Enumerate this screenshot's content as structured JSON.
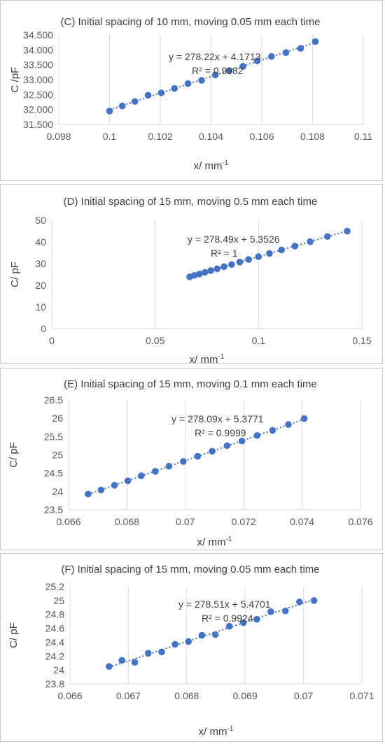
{
  "chart_data": [
    {
      "type": "scatter",
      "title": "(C) Initial spacing of 10 mm, moving 0.05 mm each time",
      "xlabel": "x/ mm",
      "xlabel_sup": "-1",
      "ylabel": "C /pF",
      "xlim": [
        0.098,
        0.11
      ],
      "ylim": [
        31.5,
        34.5
      ],
      "xticks": [
        "0.098",
        "0.1",
        "0.102",
        "0.104",
        "0.106",
        "0.108",
        "0.11"
      ],
      "yticks": [
        "31.500",
        "32.000",
        "32.500",
        "33.000",
        "33.500",
        "34.000",
        "34.500"
      ],
      "grid": "vertical",
      "equation": "y = 278.22x + 4.1713",
      "r2": "R² = 0.9982",
      "marker_color": "#4472c4",
      "trendline": {
        "slope": 278.22,
        "intercept": 4.1713
      },
      "series": [
        {
          "x": [
            0.1,
            0.1005,
            0.101,
            0.10152,
            0.10204,
            0.10256,
            0.10309,
            0.10363,
            0.10417,
            0.10471,
            0.10526,
            0.10582,
            0.10638,
            0.10695,
            0.10753,
            0.10811
          ],
          "y": [
            31.95,
            32.12,
            32.27,
            32.48,
            32.56,
            32.71,
            32.87,
            32.98,
            33.16,
            33.3,
            33.45,
            33.63,
            33.78,
            33.91,
            34.05,
            34.28
          ]
        }
      ]
    },
    {
      "type": "scatter",
      "title": "(D) Initial spacing of 15 mm, moving 0.5 mm each time",
      "xlabel": "x/ mm",
      "xlabel_sup": "-1",
      "ylabel": "C/ pF",
      "xlim": [
        0,
        0.15
      ],
      "ylim": [
        0,
        50
      ],
      "xticks": [
        "0",
        "0.05",
        "0.1",
        "0.15"
      ],
      "yticks": [
        "0",
        "10",
        "20",
        "30",
        "40",
        "50"
      ],
      "grid": "vertical",
      "equation": "y = 278.49x + 5.3526",
      "r2": "R² = 1",
      "marker_color": "#4472c4",
      "trendline": {
        "slope": 278.49,
        "intercept": 5.3526
      },
      "series": [
        {
          "x": [
            0.0667,
            0.069,
            0.0714,
            0.0741,
            0.0769,
            0.08,
            0.0833,
            0.087,
            0.0909,
            0.0952,
            0.1,
            0.1053,
            0.1111,
            0.1176,
            0.125,
            0.1333,
            0.1429
          ],
          "y": [
            23.9,
            24.6,
            25.2,
            26.0,
            26.8,
            27.6,
            28.6,
            29.6,
            30.7,
            31.9,
            33.2,
            34.7,
            36.3,
            38.1,
            40.1,
            42.5,
            45.0
          ]
        }
      ]
    },
    {
      "type": "scatter",
      "title": "(E) Initial spacing of 15 mm, moving 0.1 mm each time",
      "xlabel": "x/ mm",
      "xlabel_sup": "-1",
      "ylabel": "C/ pF",
      "xlim": [
        0.066,
        0.076
      ],
      "ylim": [
        23.5,
        26.5
      ],
      "xticks": [
        "0.066",
        "0.068",
        "0.07",
        "0.072",
        "0.074",
        "0.076"
      ],
      "yticks": [
        "23.5",
        "24",
        "24.5",
        "25",
        "25.5",
        "26",
        "26.5"
      ],
      "grid": "vertical",
      "equation": "y = 278.09x + 5.3771",
      "r2": "R² = 0.9999",
      "marker_color": "#4472c4",
      "trendline": {
        "slope": 278.09,
        "intercept": 5.3771
      },
      "series": [
        {
          "x": [
            0.06667,
            0.06711,
            0.06757,
            0.06803,
            0.06849,
            0.06897,
            0.06944,
            0.06993,
            0.07042,
            0.07092,
            0.07143,
            0.07194,
            0.07246,
            0.07299,
            0.07353,
            0.07407
          ],
          "y": [
            23.93,
            24.04,
            24.17,
            24.29,
            24.43,
            24.55,
            24.69,
            24.82,
            24.96,
            25.1,
            25.25,
            25.38,
            25.53,
            25.67,
            25.83,
            25.99
          ]
        }
      ]
    },
    {
      "type": "scatter",
      "title": "(F) Initial spacing of 15 mm, moving 0.05 mm each time",
      "xlabel": "x/ mm",
      "xlabel_sup": "-1",
      "ylabel": "C/ pF",
      "xlim": [
        0.066,
        0.071
      ],
      "ylim": [
        23.8,
        25.2
      ],
      "xticks": [
        "0.066",
        "0.067",
        "0.068",
        "0.069",
        "0.07",
        "0.071"
      ],
      "yticks": [
        "23.8",
        "24",
        "24.2",
        "24.4",
        "24.6",
        "24.8",
        "25",
        "25.2"
      ],
      "grid": "vertical",
      "equation": "y = 278.51x + 5.4701",
      "r2": "R² = 0.9924",
      "marker_color": "#4472c4",
      "trendline": {
        "slope": 278.51,
        "intercept": 5.4701
      },
      "series": [
        {
          "x": [
            0.06667,
            0.06689,
            0.06711,
            0.06734,
            0.06757,
            0.0678,
            0.06803,
            0.06826,
            0.06849,
            0.06873,
            0.06897,
            0.0692,
            0.06944,
            0.06969,
            0.06993,
            0.07018
          ],
          "y": [
            24.05,
            24.14,
            24.11,
            24.24,
            24.26,
            24.37,
            24.41,
            24.5,
            24.51,
            24.63,
            24.68,
            24.73,
            24.84,
            24.85,
            24.98,
            25.0
          ]
        }
      ]
    }
  ]
}
